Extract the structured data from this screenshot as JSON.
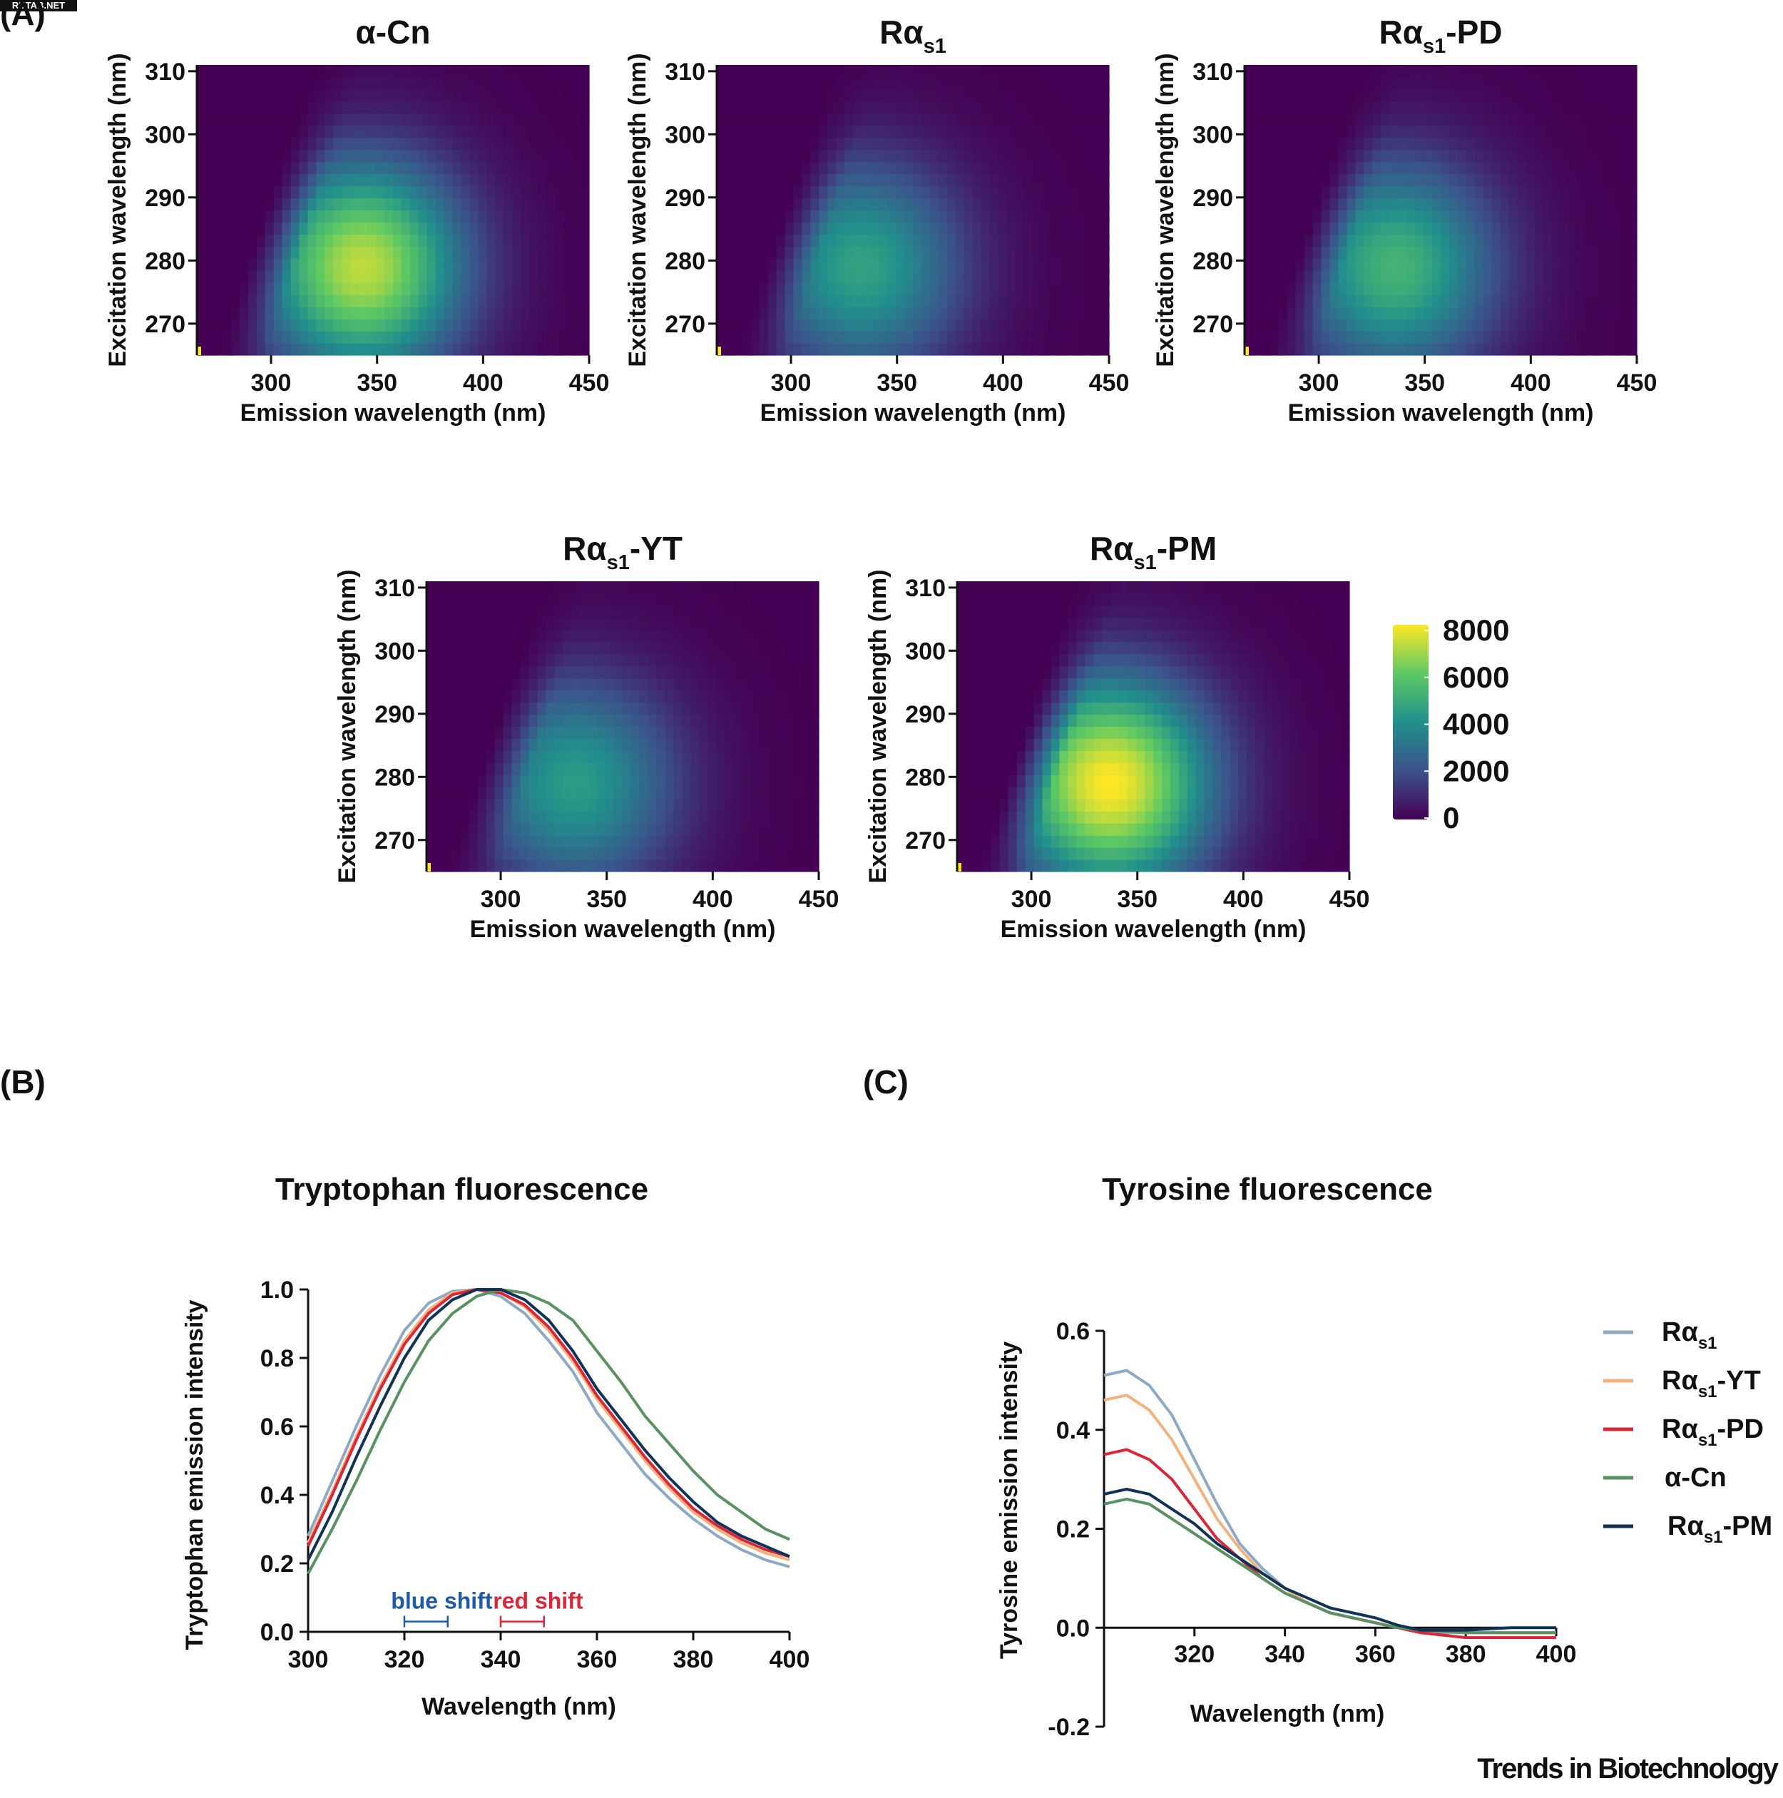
{
  "stamp": "RUTAB.NET",
  "panel_labels": {
    "a": "(A)",
    "b": "(B)",
    "c": "(C)"
  },
  "credit": "Trends in Biotechnology",
  "colorbar": {
    "ticks": [
      "8000",
      "6000",
      "4000",
      "2000",
      "0"
    ],
    "values": [
      8000,
      6000,
      4000,
      2000,
      0
    ],
    "colors": [
      "#440154",
      "#3b528b",
      "#21908c",
      "#5dc963",
      "#fde725"
    ]
  },
  "chart_data": [
    {
      "type": "heatmap",
      "title_base": "α-Cn",
      "title_sub": "",
      "title_suffix": "",
      "xlabel": "Emission wavelength (nm)",
      "ylabel": "Excitation wavelength (nm)",
      "xticks": [
        "300",
        "350",
        "400",
        "450"
      ],
      "yticks": [
        "310",
        "300",
        "290",
        "280",
        "270"
      ],
      "xlim": [
        265,
        450
      ],
      "ylim": [
        265,
        311
      ],
      "peak": {
        "emission": 343,
        "excitation": 279,
        "intensity": 7200
      }
    },
    {
      "type": "heatmap",
      "title_base": "Rα",
      "title_sub": "s1",
      "title_suffix": "",
      "xlabel": "Emission wavelength (nm)",
      "ylabel": "Excitation wavelength (nm)",
      "xticks": [
        "300",
        "350",
        "400",
        "450"
      ],
      "yticks": [
        "310",
        "300",
        "290",
        "280",
        "270"
      ],
      "xlim": [
        265,
        450
      ],
      "ylim": [
        265,
        311
      ],
      "peak": {
        "emission": 333,
        "excitation": 279,
        "intensity": 4600
      }
    },
    {
      "type": "heatmap",
      "title_base": "Rα",
      "title_sub": "s1",
      "title_suffix": "-PD",
      "xlabel": "Emission wavelength (nm)",
      "ylabel": "Excitation wavelength (nm)",
      "xticks": [
        "300",
        "350",
        "400",
        "450"
      ],
      "yticks": [
        "310",
        "300",
        "290",
        "280",
        "270"
      ],
      "xlim": [
        265,
        450
      ],
      "ylim": [
        265,
        311
      ],
      "peak": {
        "emission": 336,
        "excitation": 279,
        "intensity": 5200
      }
    },
    {
      "type": "heatmap",
      "title_base": "Rα",
      "title_sub": "s1",
      "title_suffix": "-YT",
      "xlabel": "Emission wavelength (nm)",
      "ylabel": "Excitation wavelength (nm)",
      "xticks": [
        "300",
        "350",
        "400",
        "450"
      ],
      "yticks": [
        "310",
        "300",
        "290",
        "280",
        "270"
      ],
      "xlim": [
        265,
        450
      ],
      "ylim": [
        265,
        311
      ],
      "peak": {
        "emission": 335,
        "excitation": 279,
        "intensity": 4400
      }
    },
    {
      "type": "heatmap",
      "title_base": "Rα",
      "title_sub": "s1",
      "title_suffix": "-PM",
      "xlabel": "Emission wavelength (nm)",
      "ylabel": "Excitation wavelength (nm)",
      "xticks": [
        "300",
        "350",
        "400",
        "450"
      ],
      "yticks": [
        "310",
        "300",
        "290",
        "280",
        "270"
      ],
      "xlim": [
        265,
        450
      ],
      "ylim": [
        265,
        311
      ],
      "peak": {
        "emission": 337,
        "excitation": 279,
        "intensity": 8000
      }
    },
    {
      "type": "line",
      "title": "Tryptophan fluorescence",
      "xlabel": "Wavelength (nm)",
      "ylabel": "Tryptophan emission intensity",
      "xlim": [
        300,
        400
      ],
      "ylim": [
        0,
        1.0
      ],
      "xticks": [
        "300",
        "320",
        "340",
        "360",
        "380",
        "400"
      ],
      "yticks": [
        "1.0",
        "0.8",
        "0.6",
        "0.4",
        "0.2",
        "0.0"
      ],
      "annotations": [
        {
          "text": "blue shift",
          "x_from": 320,
          "x_to": 329,
          "y": 0.03,
          "color": "#1f5aa6"
        },
        {
          "text": "red shift",
          "x_from": 340,
          "x_to": 349,
          "y": 0.03,
          "color": "#d9273a"
        }
      ],
      "series": [
        {
          "color": "#8fa9c4",
          "x": [
            300,
            305,
            310,
            315,
            320,
            325,
            330,
            335,
            340,
            345,
            350,
            355,
            360,
            365,
            370,
            375,
            380,
            385,
            390,
            395,
            400
          ],
          "y": [
            0.28,
            0.44,
            0.6,
            0.75,
            0.88,
            0.96,
            0.995,
            1.0,
            0.98,
            0.93,
            0.85,
            0.76,
            0.64,
            0.55,
            0.46,
            0.39,
            0.33,
            0.28,
            0.24,
            0.21,
            0.19
          ]
        },
        {
          "color": "#f2b27e",
          "x": [
            300,
            305,
            310,
            315,
            320,
            325,
            330,
            335,
            340,
            345,
            350,
            355,
            360,
            365,
            370,
            375,
            380,
            385,
            390,
            395,
            400
          ],
          "y": [
            0.26,
            0.41,
            0.57,
            0.72,
            0.85,
            0.94,
            0.99,
            1.0,
            0.99,
            0.95,
            0.88,
            0.79,
            0.68,
            0.59,
            0.5,
            0.42,
            0.35,
            0.3,
            0.26,
            0.23,
            0.21
          ]
        },
        {
          "color": "#d9273a",
          "x": [
            300,
            305,
            310,
            315,
            320,
            325,
            330,
            335,
            340,
            345,
            350,
            355,
            360,
            365,
            370,
            375,
            380,
            385,
            390,
            395,
            400
          ],
          "y": [
            0.25,
            0.4,
            0.56,
            0.71,
            0.84,
            0.93,
            0.985,
            1.0,
            0.99,
            0.955,
            0.89,
            0.8,
            0.69,
            0.6,
            0.51,
            0.43,
            0.36,
            0.31,
            0.27,
            0.24,
            0.22
          ]
        },
        {
          "color": "#5a9162",
          "x": [
            300,
            305,
            310,
            315,
            320,
            325,
            330,
            335,
            340,
            345,
            350,
            355,
            360,
            365,
            370,
            375,
            380,
            385,
            390,
            395,
            400
          ],
          "y": [
            0.17,
            0.3,
            0.44,
            0.59,
            0.73,
            0.85,
            0.93,
            0.98,
            1.0,
            0.99,
            0.96,
            0.91,
            0.82,
            0.73,
            0.63,
            0.55,
            0.47,
            0.4,
            0.35,
            0.3,
            0.27
          ]
        },
        {
          "color": "#0f3256",
          "x": [
            300,
            305,
            310,
            315,
            320,
            325,
            330,
            335,
            340,
            345,
            350,
            355,
            360,
            365,
            370,
            375,
            380,
            385,
            390,
            395,
            400
          ],
          "y": [
            0.21,
            0.35,
            0.51,
            0.66,
            0.8,
            0.91,
            0.97,
            1.0,
            1.0,
            0.97,
            0.91,
            0.82,
            0.71,
            0.62,
            0.53,
            0.45,
            0.38,
            0.32,
            0.28,
            0.25,
            0.22
          ]
        }
      ]
    },
    {
      "type": "line",
      "title": "Tyrosine fluorescence",
      "xlabel": "Wavelength (nm)",
      "ylabel": "Tyrosine emission intensity",
      "xlim": [
        300,
        400
      ],
      "ylim": [
        -0.2,
        0.6
      ],
      "xticks": [
        "320",
        "340",
        "360",
        "380",
        "400"
      ],
      "yticks": [
        "0.6",
        "0.4",
        "0.2",
        "0.0",
        "-0.2"
      ],
      "legend_position": "right",
      "series": [
        {
          "name_base": "Rα",
          "name_sub": "s1",
          "name_suffix": "",
          "color": "#8fa9c4",
          "x": [
            300,
            305,
            310,
            315,
            320,
            325,
            330,
            335,
            340,
            345,
            350,
            355,
            360,
            365,
            370,
            380,
            390,
            400
          ],
          "y": [
            0.51,
            0.52,
            0.49,
            0.43,
            0.34,
            0.25,
            0.17,
            0.12,
            0.08,
            0.05,
            0.03,
            0.02,
            0.01,
            0.0,
            -0.01,
            -0.01,
            -0.01,
            -0.01
          ]
        },
        {
          "name_base": "Rα",
          "name_sub": "s1",
          "name_suffix": "-YT",
          "color": "#f2b27e",
          "x": [
            300,
            305,
            310,
            315,
            320,
            325,
            330,
            335,
            340,
            345,
            350,
            355,
            360,
            365,
            370,
            380,
            390,
            400
          ],
          "y": [
            0.46,
            0.47,
            0.44,
            0.38,
            0.3,
            0.22,
            0.16,
            0.11,
            0.08,
            0.05,
            0.03,
            0.02,
            0.01,
            0.0,
            -0.005,
            -0.01,
            -0.01,
            -0.01
          ]
        },
        {
          "name_base": "Rα",
          "name_sub": "s1",
          "name_suffix": "-PD",
          "color": "#d9273a",
          "x": [
            300,
            305,
            310,
            315,
            320,
            325,
            330,
            335,
            340,
            345,
            350,
            355,
            360,
            365,
            370,
            380,
            390,
            400
          ],
          "y": [
            0.35,
            0.36,
            0.34,
            0.3,
            0.24,
            0.18,
            0.14,
            0.1,
            0.07,
            0.05,
            0.03,
            0.02,
            0.01,
            0.0,
            -0.01,
            -0.02,
            -0.02,
            -0.02
          ]
        },
        {
          "name_base": "α-Cn",
          "name_sub": "",
          "name_suffix": "",
          "color": "#5a9162",
          "x": [
            300,
            305,
            310,
            315,
            320,
            325,
            330,
            335,
            340,
            345,
            350,
            355,
            360,
            365,
            370,
            380,
            390,
            400
          ],
          "y": [
            0.25,
            0.26,
            0.25,
            0.22,
            0.19,
            0.16,
            0.13,
            0.1,
            0.07,
            0.05,
            0.03,
            0.02,
            0.01,
            0.0,
            -0.005,
            -0.01,
            -0.01,
            -0.01
          ]
        },
        {
          "name_base": "Rα",
          "name_sub": "s1",
          "name_suffix": "-PM",
          "color": "#0f3256",
          "x": [
            300,
            305,
            310,
            315,
            320,
            325,
            330,
            335,
            340,
            345,
            350,
            355,
            360,
            365,
            370,
            380,
            390,
            400
          ],
          "y": [
            0.27,
            0.28,
            0.27,
            0.24,
            0.21,
            0.17,
            0.14,
            0.11,
            0.08,
            0.06,
            0.04,
            0.03,
            0.02,
            0.005,
            -0.005,
            -0.005,
            0.0,
            0.0
          ]
        }
      ]
    }
  ]
}
